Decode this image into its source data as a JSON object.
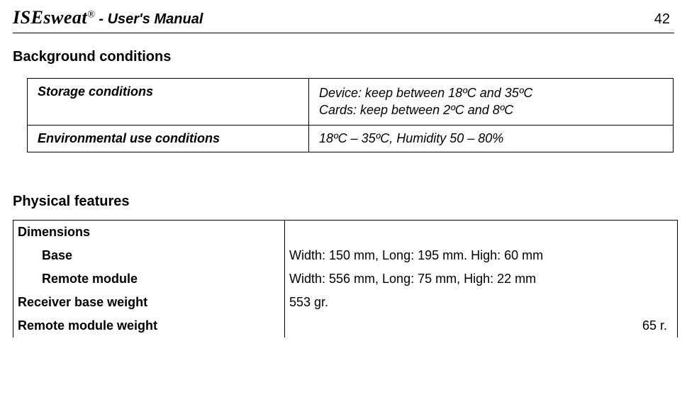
{
  "header": {
    "brand": "ISEsweat",
    "reg": "®",
    "sep": " -  ",
    "subtitle": "User's  Manual",
    "pageNumber": "42"
  },
  "section1": {
    "heading": "Background conditions",
    "rows": [
      {
        "label": "Storage conditions",
        "valueLine1": "Device: keep between 18ºC and 35ºC",
        "valueLine2": "Cards: keep between 2ºC and 8ºC"
      },
      {
        "label": "Environmental use conditions",
        "valueLine1": "18ºC – 35ºC, Humidity 50 – 80%",
        "valueLine2": ""
      }
    ]
  },
  "section2": {
    "heading": "Physical features",
    "rows": [
      {
        "label": "Dimensions",
        "value": "",
        "indent": false
      },
      {
        "label": "Base",
        "value": "Width: 150 mm, Long: 195 mm. High: 60 mm",
        "indent": true
      },
      {
        "label": "Remote module",
        "value": "Width: 556 mm, Long: 75 mm, High: 22 mm",
        "indent": true
      },
      {
        "label": "Receiver base weight",
        "value": "553 gr.",
        "indent": false
      },
      {
        "label": "Remote module weight",
        "value": "65 r.",
        "indent": false,
        "alignRight": true
      }
    ]
  }
}
